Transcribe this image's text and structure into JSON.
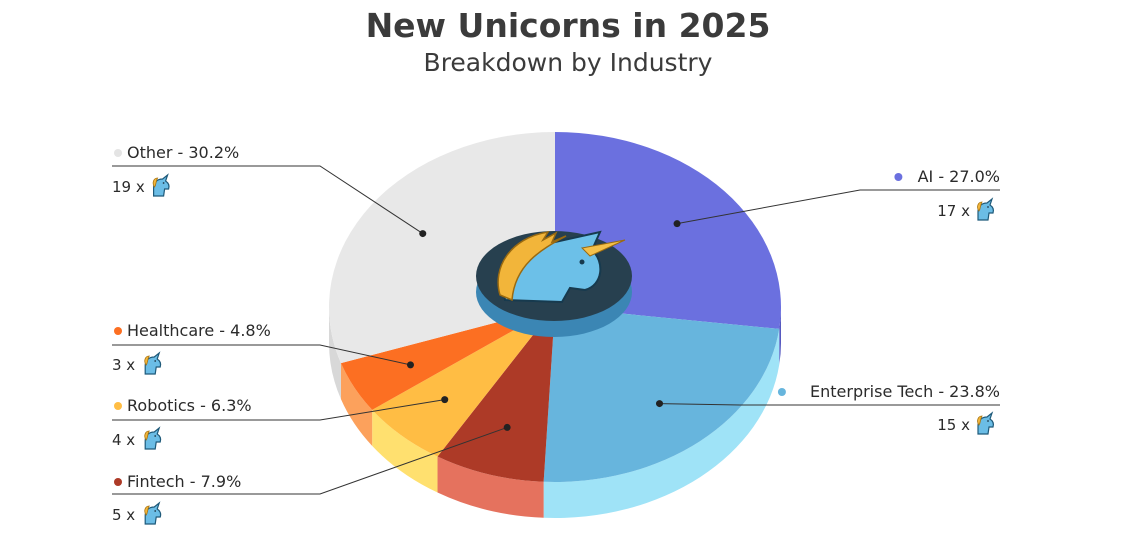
{
  "chart_data": {
    "type": "pie",
    "title": "New Unicorns in 2025",
    "subtitle": "Breakdown by Industry",
    "count_suffix": "x",
    "slices": [
      {
        "name": "AI",
        "value": 27.0,
        "count": 17,
        "label": "AI - 27.0%",
        "count_label": "17 x",
        "color": "#6b70df",
        "side_color": "#5659c0"
      },
      {
        "name": "Enterprise Tech",
        "value": 23.8,
        "count": 15,
        "label": "Enterprise Tech - 23.8%",
        "count_label": "15 x",
        "color": "#67b5dd",
        "side_color": "#9fe3f7"
      },
      {
        "name": "Fintech",
        "value": 7.9,
        "count": 5,
        "label": "Fintech - 7.9%",
        "count_label": "5 x",
        "color": "#ad3a27",
        "side_color": "#e5725e"
      },
      {
        "name": "Robotics",
        "value": 6.3,
        "count": 4,
        "label": "Robotics - 6.3%",
        "count_label": "4 x",
        "color": "#ffbd44",
        "side_color": "#ffe06f"
      },
      {
        "name": "Healthcare",
        "value": 4.8,
        "count": 3,
        "label": "Healthcare - 4.8%",
        "count_label": "3 x",
        "color": "#fc6f22",
        "side_color": "#fca15c"
      },
      {
        "name": "Other",
        "value": 30.2,
        "count": 19,
        "label": "Other - 30.2%",
        "count_label": "19 x",
        "color": "#e8e8e8",
        "side_color": "#d8d8d8"
      }
    ]
  },
  "icons": {
    "unicorn": "unicorn-icon",
    "center": "unicorn-head-badge"
  }
}
